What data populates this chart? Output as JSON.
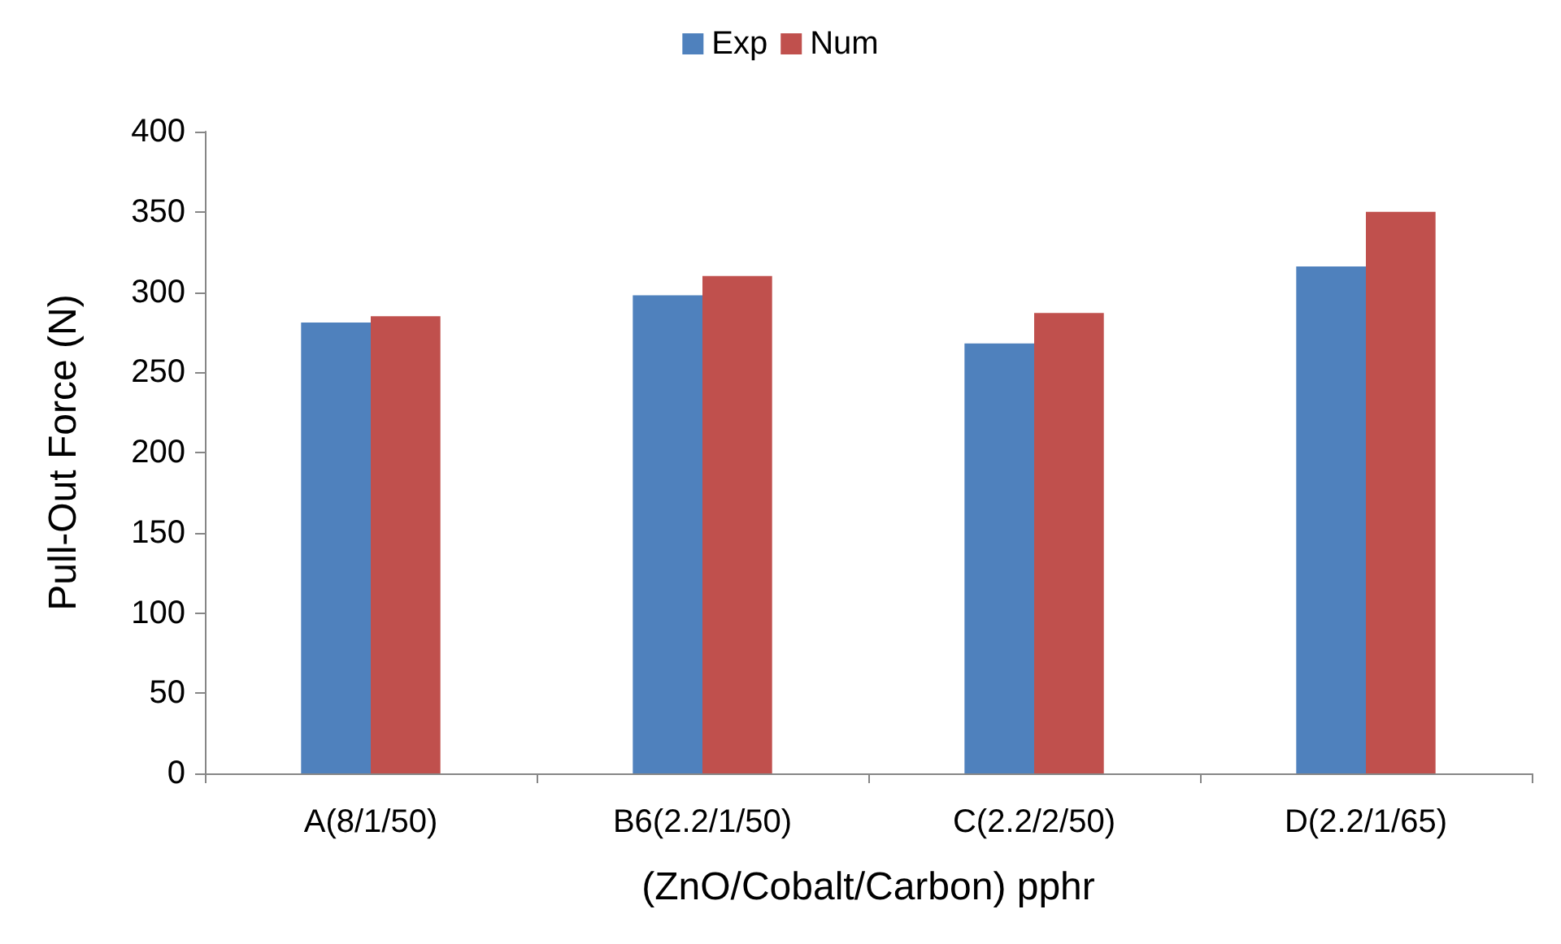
{
  "chart_data": {
    "type": "bar",
    "xlabel": "(ZnO/Cobalt/Carbon) pphr",
    "ylabel": "Pull-Out Force (N)",
    "categories": [
      "A(8/1/50)",
      "B6(2.2/1/50)",
      "C(2.2/2/50)",
      "D(2.2/1/65)"
    ],
    "series": [
      {
        "name": "Exp",
        "color": "#4f81bd",
        "values": [
          281,
          298,
          268,
          316
        ]
      },
      {
        "name": "Num",
        "color": "#c0504d",
        "values": [
          285,
          310,
          287,
          350
        ]
      }
    ],
    "ylim": [
      0,
      400
    ],
    "yticks": [
      0,
      50,
      100,
      150,
      200,
      250,
      300,
      350,
      400
    ],
    "grid": false,
    "legend": "top"
  }
}
